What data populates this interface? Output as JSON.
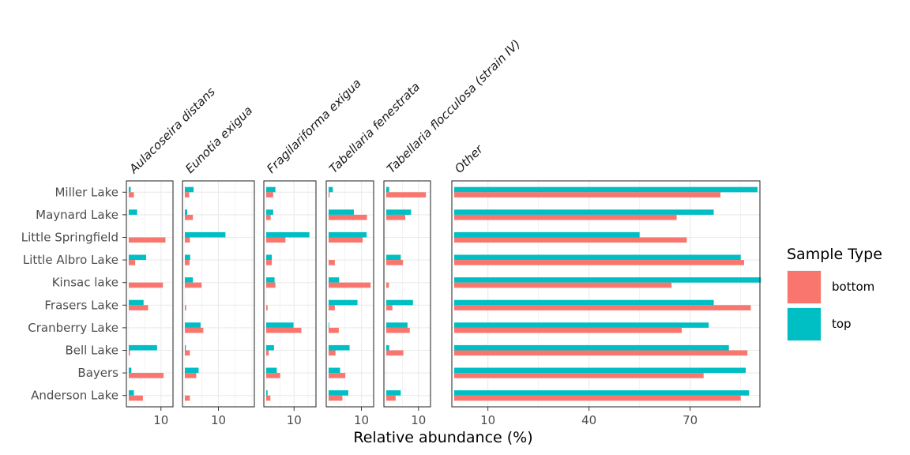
{
  "chart_data": {
    "type": "bar",
    "orientation": "horizontal",
    "xlabel": "Relative abundance (%)",
    "grid": true,
    "legend": {
      "title": "Sample Type",
      "position": "right",
      "entries": [
        {
          "name": "bottom",
          "color": "#F8766D"
        },
        {
          "name": "top",
          "color": "#00BFC4"
        }
      ]
    },
    "lakes": [
      "Miller Lake",
      "Maynard Lake",
      "Little Springfield",
      "Little Albro Lake",
      "Kinsac lake",
      "Frasers Lake",
      "Cranberry Lake",
      "Bell Lake",
      "Bayers",
      "Anderson Lake"
    ],
    "panels": [
      {
        "name": "Aulacoseira distans",
        "xlim": [
          0,
          13
        ],
        "ticks": [
          10
        ],
        "tick_labels": [
          "10"
        ],
        "bottom": [
          1.6,
          0,
          11.4,
          2.0,
          10.6,
          6.0,
          0,
          0.4,
          10.8,
          4.4
        ],
        "top": [
          0.6,
          2.6,
          0,
          5.4,
          0,
          4.6,
          0,
          8.8,
          0.8,
          1.6
        ]
      },
      {
        "name": "Eunotia exigua",
        "xlim": [
          0,
          20
        ],
        "ticks": [
          10
        ],
        "tick_labels": [
          "10"
        ],
        "bottom": [
          1.3,
          2.4,
          1.5,
          1.4,
          5.0,
          0.4,
          5.5,
          1.5,
          3.4,
          1.5
        ],
        "top": [
          2.6,
          0.7,
          12.1,
          1.6,
          2.4,
          0,
          4.7,
          0.3,
          4.1,
          0
        ]
      },
      {
        "name": "Fragilariforma exigua",
        "xlim": [
          0,
          17
        ],
        "ticks": [
          10
        ],
        "tick_labels": [
          "10"
        ],
        "bottom": [
          2.5,
          1.6,
          6.9,
          2.0,
          3.3,
          0.5,
          12.6,
          0.9,
          5.0,
          1.5
        ],
        "top": [
          3.3,
          2.5,
          15.5,
          2.0,
          3.0,
          0,
          9.8,
          2.8,
          3.8,
          0.5
        ]
      },
      {
        "name": "Tabellaria fenestrata",
        "xlim": [
          0,
          13
        ],
        "ticks": [
          10
        ],
        "tick_labels": [
          "10"
        ],
        "bottom": [
          0.3,
          11.7,
          10.4,
          1.9,
          12.8,
          1.9,
          3.1,
          2.1,
          5.1,
          4.2
        ],
        "top": [
          1.3,
          7.7,
          11.6,
          0,
          3.2,
          8.8,
          0.2,
          6.4,
          3.5,
          6.0
        ]
      },
      {
        "name": "Tabellaria flocculosa (strain IV)",
        "xlim": [
          0,
          13
        ],
        "ticks": [
          10
        ],
        "tick_labels": [
          "10"
        ],
        "bottom": [
          12.3,
          5.9,
          0,
          5.2,
          0.8,
          1.9,
          7.3,
          5.3,
          0,
          2.9
        ],
        "top": [
          0.9,
          7.7,
          0,
          4.5,
          0,
          8.3,
          6.6,
          0.9,
          0,
          4.5
        ]
      },
      {
        "name": "Other",
        "xlim": [
          0,
          90
        ],
        "ticks": [
          10,
          40,
          70
        ],
        "tick_labels": [
          "10",
          "40",
          "70"
        ],
        "bottom": [
          79,
          66,
          69,
          86,
          64.5,
          88,
          67.5,
          87,
          74,
          85
        ],
        "top": [
          90,
          77,
          55,
          85,
          91,
          77,
          75.5,
          81.5,
          86.5,
          87.5
        ]
      }
    ]
  }
}
